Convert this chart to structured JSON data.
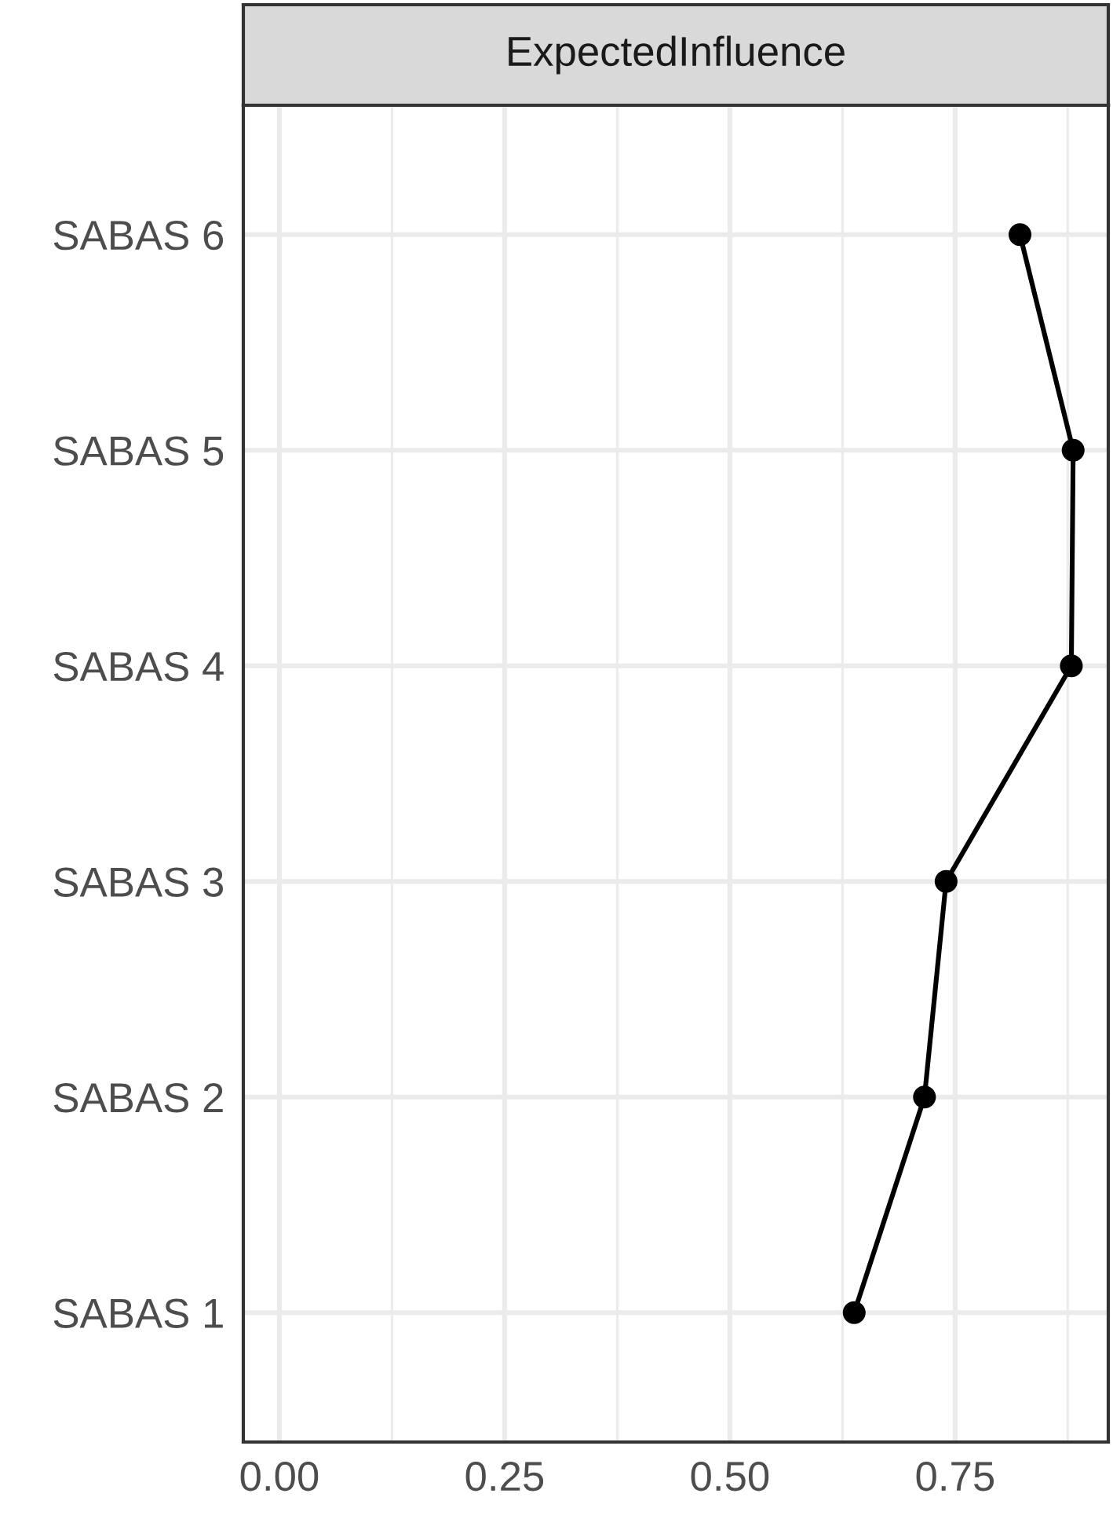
{
  "chart_data": {
    "type": "line",
    "title": "ExpectedInfluence",
    "orientation": "horizontal",
    "categories": [
      "SABAS 6",
      "SABAS 5",
      "SABAS 4",
      "SABAS 3",
      "SABAS 2",
      "SABAS 1"
    ],
    "series": [
      {
        "color": "#000000",
        "values": [
          0.822,
          0.881,
          0.879,
          0.74,
          0.716,
          0.638
        ]
      }
    ],
    "xlim": [
      -0.04,
      0.92
    ],
    "xticks": [
      {
        "value": 0,
        "label": "0.00"
      },
      {
        "value": 0.25,
        "label": "0.25"
      },
      {
        "value": 0.5,
        "label": "0.50"
      },
      {
        "value": 0.75,
        "label": "0.75"
      }
    ],
    "grid": true,
    "marker": "circle",
    "line_style": "solid"
  }
}
